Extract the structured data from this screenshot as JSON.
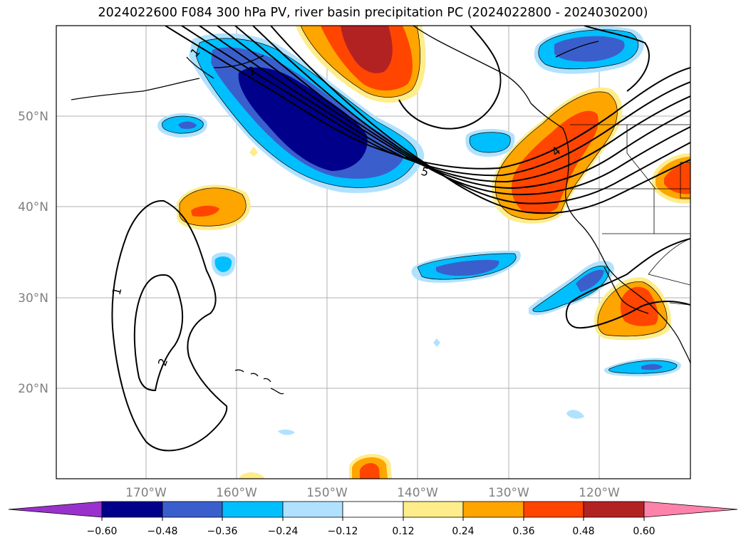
{
  "title": "2024022600 F084 300 hPa PV, river basin precipitation PC (2024022800 - 2024030200)",
  "map": {
    "lon_labels": [
      "170°W",
      "160°W",
      "150°W",
      "140°W",
      "130°W",
      "120°W"
    ],
    "lat_labels": [
      "50°N",
      "40°N",
      "30°N",
      "20°N"
    ],
    "contour_labels": [
      "1",
      "2",
      "5",
      "4",
      "1",
      "2"
    ]
  },
  "colorbar": {
    "ticks": [
      "−0.60",
      "−0.48",
      "−0.36",
      "−0.24",
      "−0.12",
      "0.12",
      "0.24",
      "0.36",
      "0.48",
      "0.60"
    ],
    "colors": [
      "#9932cc",
      "#00008b",
      "#3a5fcd",
      "#00bfff",
      "#b0e2ff",
      "#ffffff",
      "#ffec8b",
      "#ffa500",
      "#ff4500",
      "#b22222",
      "#ff82ab"
    ]
  },
  "palette": {
    "deep_blue": "#00008b",
    "mid_blue": "#3a5fcd",
    "sky_blue": "#00bfff",
    "light_blue": "#b0e2ff",
    "light_yellow": "#ffec8b",
    "orange": "#ffa500",
    "red_orange": "#ff4500",
    "firebrick": "#b22222"
  }
}
